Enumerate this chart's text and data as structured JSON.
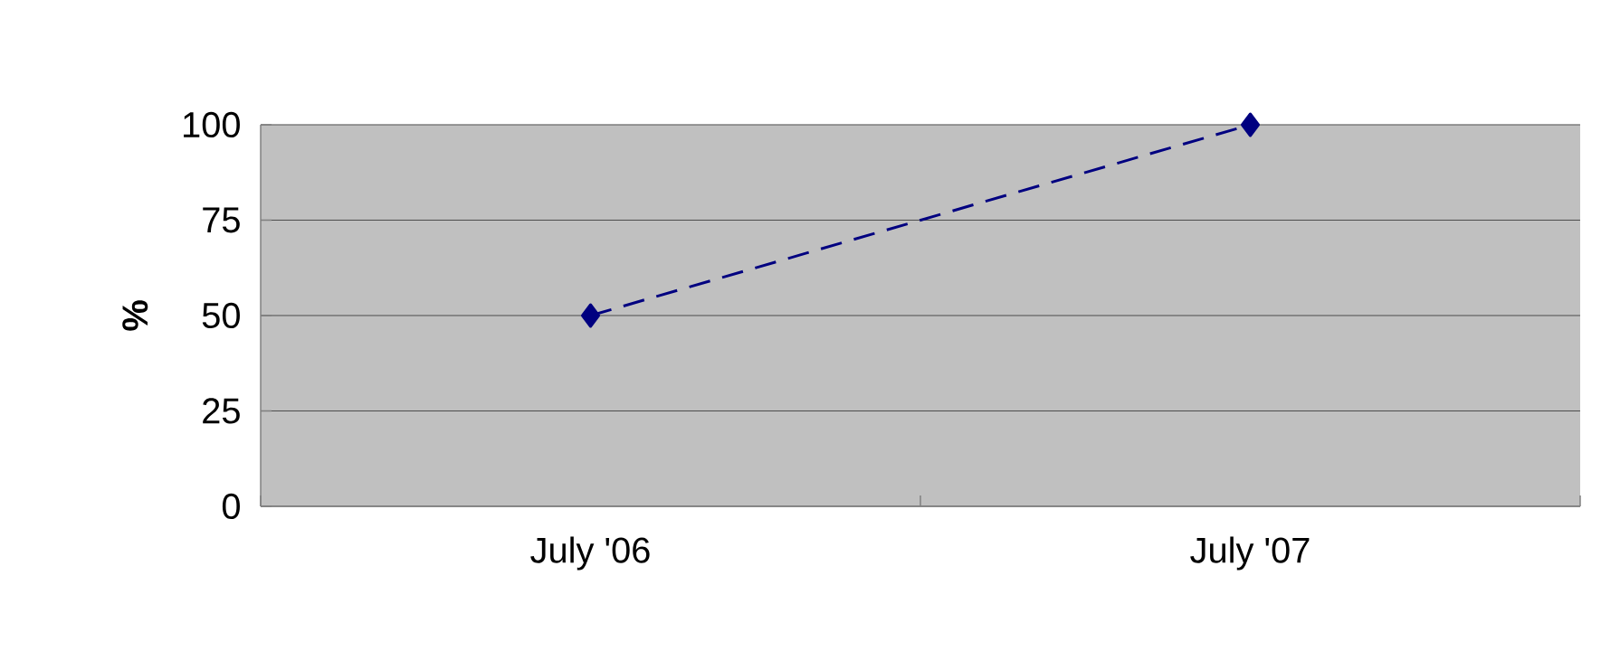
{
  "chart_data": {
    "type": "line",
    "ylabel": "%",
    "categories": [
      "July '06",
      "July '07"
    ],
    "series": [
      {
        "color": "#000080",
        "values": [
          50,
          100
        ]
      }
    ],
    "ylim": [
      0,
      100
    ],
    "yticks": [
      0,
      25,
      50,
      75,
      100
    ],
    "grid": "y",
    "marker": "diamond",
    "line_style": "dashed"
  }
}
